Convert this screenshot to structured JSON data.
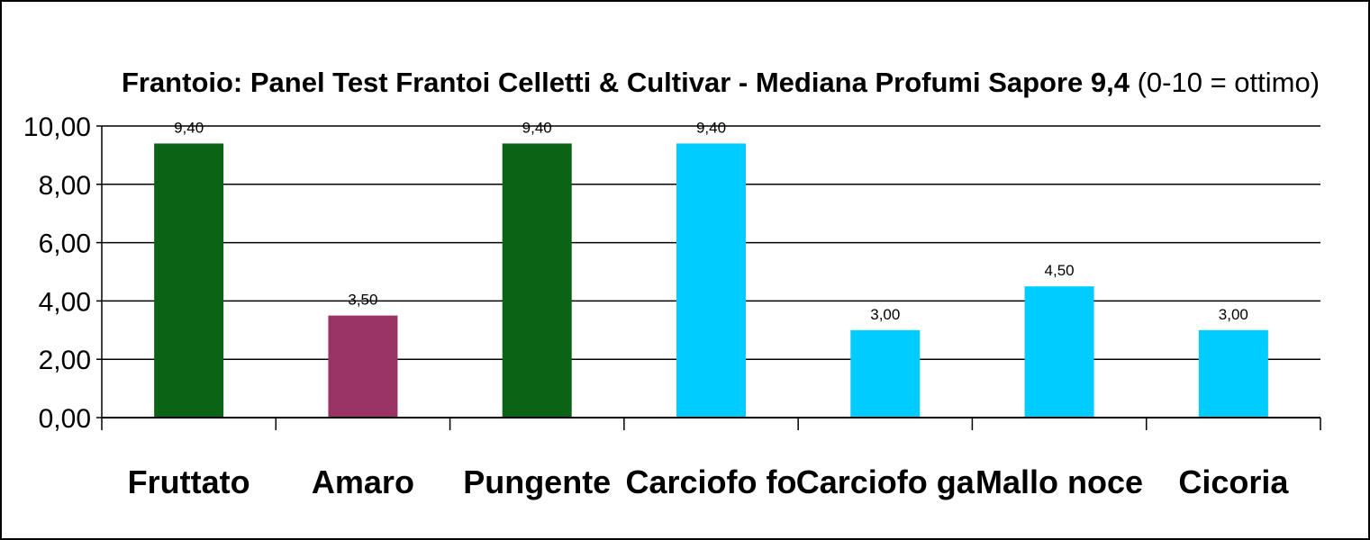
{
  "chart_data": {
    "type": "bar",
    "title_bold": "Frantoio: Panel Test Frantoi Celletti & Cultivar - Mediana Profumi Sapore 9,4",
    "title_rest": " (0-10 = ottimo)",
    "categories": [
      "Fruttato",
      "Amaro",
      "Pungente",
      "Carciofo fo",
      "Carciofo ga",
      "Mallo noce",
      "Cicoria"
    ],
    "values": [
      9.4,
      3.5,
      9.4,
      9.4,
      3.0,
      4.5,
      3.0
    ],
    "value_labels": [
      "9,40",
      "3,50",
      "9,40",
      "9,40",
      "3,00",
      "4,50",
      "3,00"
    ],
    "bar_colors": [
      "#0b6416",
      "#993366",
      "#0b6416",
      "#00ccff",
      "#00ccff",
      "#00ccff",
      "#00ccff"
    ],
    "yticks": [
      0,
      2,
      4,
      6,
      8,
      10
    ],
    "ytick_labels": [
      "0,00",
      "2,00",
      "4,00",
      "6,00",
      "8,00",
      "10,00"
    ],
    "ylim": [
      0,
      10
    ],
    "xlabel": "",
    "ylabel": "",
    "grid": true,
    "legend": "none"
  }
}
